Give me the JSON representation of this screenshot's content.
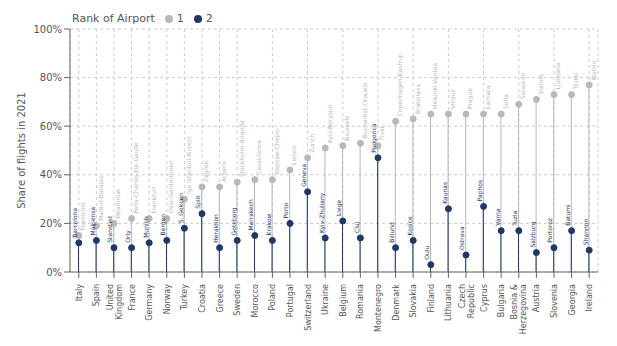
{
  "chart_data": {
    "type": "lollipop",
    "categories": [
      "Italy",
      "Spain",
      "United\nKingdom",
      "France",
      "Germany",
      "Norway",
      "Turkey",
      "Croatia",
      "Greece",
      "Sweden",
      "Morocco",
      "Poland",
      "Portugal",
      "Switzerland",
      "Ukraine",
      "Belgium",
      "Romania",
      "Montenegro",
      "Denmark",
      "Slovakia",
      "Finland",
      "Lithuania",
      "Czech\nRepublic",
      "Cyprus",
      "Bulgaria",
      "Bosnia &\nHerzegovina",
      "Austria",
      "Slovenia",
      "Georgia",
      "Ireland"
    ],
    "series": [
      {
        "name": "1",
        "color": "#b8b8b8",
        "values": [
          15,
          19,
          20,
          22,
          22,
          22,
          30,
          35,
          35,
          37,
          38,
          38,
          42,
          47,
          51,
          52,
          53,
          52,
          62,
          63,
          65,
          65,
          65,
          65,
          65,
          69,
          71,
          73,
          73,
          77
        ],
        "labels": [
          "Fiumicino",
          "Madrid-Barajas",
          "Heathrow",
          "Paris-Charles-De-Gaulle",
          "Frankfurt",
          "Oslo-Gardermoen",
          "Iga Istanbul Airport",
          "Zagreb",
          "Athens",
          "Stockholm-Arlanda",
          "Casablanca",
          "Warsaw-Chopin",
          "Lisbon",
          "Zurich",
          "Kyiv-Boryspil",
          "Brussels",
          "Bucharest-Otopeni",
          "Tivat",
          "Copenhagen-Kastrup",
          "Bratislava",
          "Helsinki-Vantaa",
          "Vilnius",
          "Prague",
          "Larnaca",
          "Sofia",
          "Sarajevo",
          "Vienna",
          "Ljubljana",
          "Tbilisi",
          "Dublin"
        ]
      },
      {
        "name": "2",
        "color": "#1f3864",
        "values": [
          12,
          13,
          10,
          10,
          12,
          13,
          18,
          24,
          10,
          13,
          15,
          13,
          20,
          33,
          14,
          21,
          14,
          47,
          10,
          13,
          3,
          26,
          7,
          27,
          17,
          17,
          8,
          10,
          17,
          9
        ],
        "labels": [
          "Barcelona",
          "Malpensa",
          "Stansted",
          "Orly",
          "Munich",
          "Bergen",
          "S. Gokcen",
          "Split",
          "Heraklion",
          "Goteborg",
          "Marrakech",
          "Krakow",
          "Porto",
          "Geneva",
          "Kyiv-Zhuliany",
          "Liege",
          "Cluj",
          "Podgorica",
          "Billund",
          "Kosice",
          "Oulu",
          "Kaunas",
          "Ostrava",
          "Paphos",
          "Varna",
          "Tuzla",
          "Salzburg",
          "Portoroz",
          "Batumi",
          "Shannon"
        ]
      }
    ],
    "ylabel": "Share of flights in 2021",
    "ylim": [
      0,
      100
    ],
    "yticks": [
      {
        "value": 0,
        "label": "0%"
      },
      {
        "value": 20,
        "label": "20%"
      },
      {
        "value": 40,
        "label": "40%"
      },
      {
        "value": 60,
        "label": "60%"
      },
      {
        "value": 80,
        "label": "80%"
      },
      {
        "value": 100,
        "label": "100%"
      }
    ],
    "grid": true,
    "legend": "upper left",
    "legend_title": "Rank of Airport"
  }
}
